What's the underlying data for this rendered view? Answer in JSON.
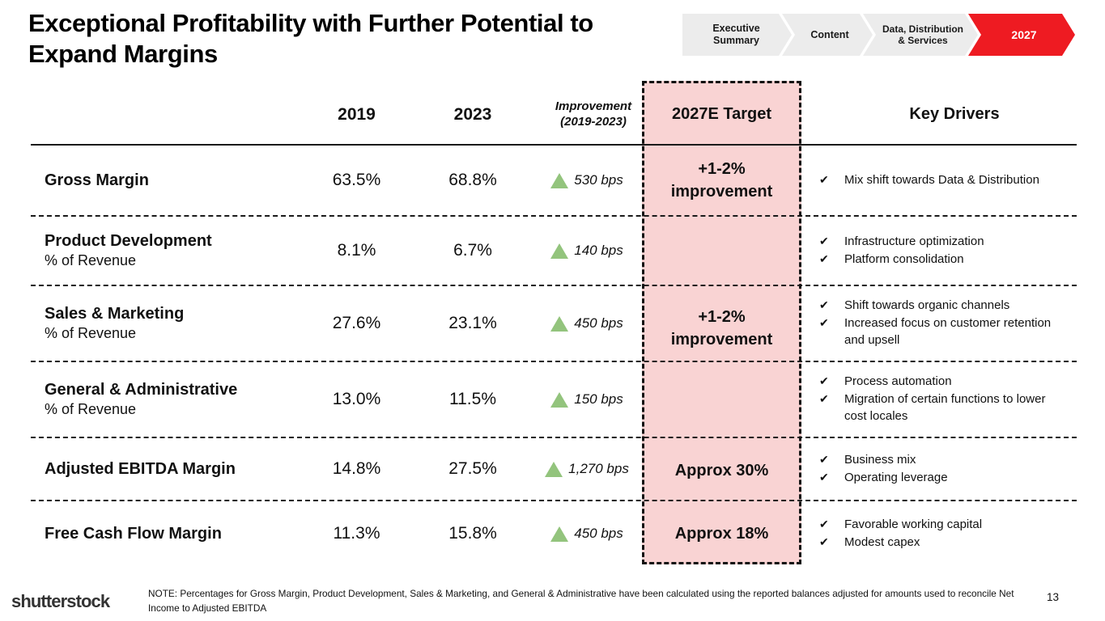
{
  "colors": {
    "accent_red": "#ee1b22",
    "target_pink": "#f9d3d3",
    "triangle_green": "#93c47d",
    "crumb_gray": "#ececec"
  },
  "slide": {
    "title": "Exceptional Profitability with Further Potential to Expand Margins",
    "page_number": "13"
  },
  "breadcrumb": {
    "items": [
      {
        "label": "Executive Summary"
      },
      {
        "label": "Content"
      },
      {
        "label": "Data, Distribution & Services"
      },
      {
        "label": "2027"
      }
    ]
  },
  "table": {
    "headers": {
      "col_2019": "2019",
      "col_2023": "2023",
      "improvement": "Improvement (2019-2023)",
      "target": "2027E Target",
      "drivers": "Key Drivers"
    },
    "rows": [
      {
        "label": "Gross Margin",
        "sublabel": "",
        "v2019": "63.5%",
        "v2023": "68.8%",
        "improvement": "530 bps",
        "drivers": [
          "Mix shift towards Data & Distribution"
        ]
      },
      {
        "label": "Product Development",
        "sublabel": "% of Revenue",
        "v2019": "8.1%",
        "v2023": "6.7%",
        "improvement": "140 bps",
        "drivers": [
          "Infrastructure optimization",
          "Platform consolidation"
        ]
      },
      {
        "label": "Sales & Marketing",
        "sublabel": "% of Revenue",
        "v2019": "27.6%",
        "v2023": "23.1%",
        "improvement": "450 bps",
        "drivers": [
          "Shift towards organic channels",
          "Increased focus on customer retention and upsell"
        ]
      },
      {
        "label": "General & Administrative",
        "sublabel": "% of Revenue",
        "v2019": "13.0%",
        "v2023": "11.5%",
        "improvement": "150 bps",
        "drivers": [
          "Process automation",
          "Migration of certain functions to lower cost locales"
        ]
      },
      {
        "label": "Adjusted EBITDA Margin",
        "sublabel": "",
        "v2019": "14.8%",
        "v2023": "27.5%",
        "improvement": "1,270 bps",
        "drivers": [
          "Business mix",
          "Operating leverage"
        ]
      },
      {
        "label": "Free Cash Flow Margin",
        "sublabel": "",
        "v2019": "11.3%",
        "v2023": "15.8%",
        "improvement": "450 bps",
        "drivers": [
          "Favorable working capital",
          "Modest capex"
        ]
      }
    ],
    "targets": {
      "gross_margin": "+1-2% improvement",
      "opex_merged": "+1-2% improvement",
      "ebitda": "Approx 30%",
      "fcf": "Approx 18%"
    },
    "check_glyph": "✔"
  },
  "footer": {
    "logo_text": "shutterstock",
    "note": "NOTE: Percentages for Gross Margin, Product Development, Sales & Marketing, and General & Administrative have been calculated using the reported balances adjusted for amounts used to reconcile Net Income to Adjusted EBITDA"
  }
}
